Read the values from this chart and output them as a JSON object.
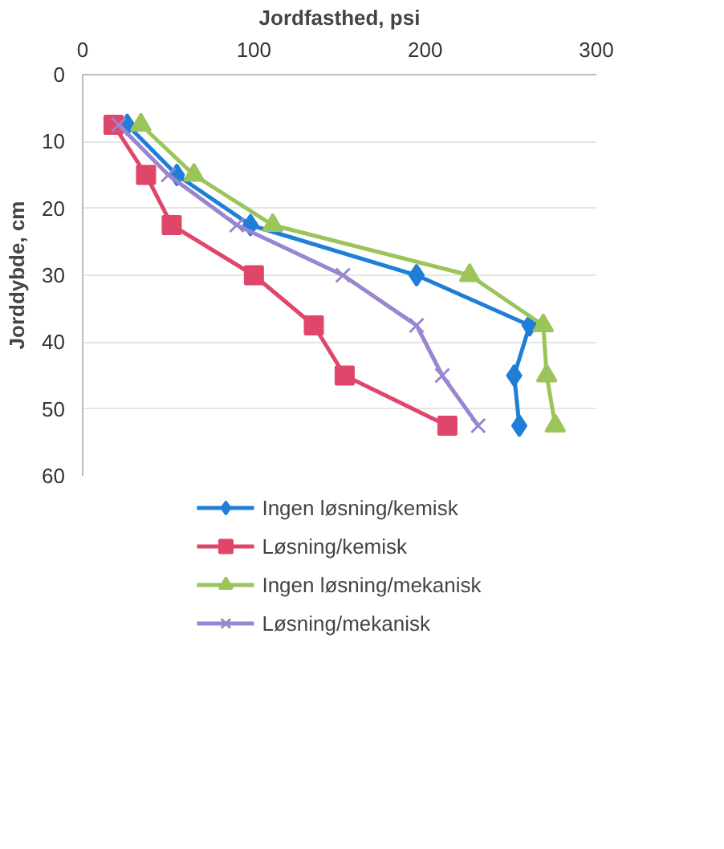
{
  "chart_data": {
    "type": "line",
    "xlabel": "Jordfasthed, psi",
    "ylabel": "Jorddybde, cm",
    "xlim": [
      0,
      300
    ],
    "xticks": [
      0,
      100,
      200,
      300
    ],
    "ylim": [
      60,
      0
    ],
    "yticks": [
      0,
      10,
      20,
      30,
      40,
      50,
      60
    ],
    "grid": "y",
    "legend": "bottom",
    "series": [
      {
        "name": "Ingen løsning/kemisk",
        "color": "#1f7fd6",
        "marker": "diamond",
        "x": [
          26,
          55,
          98,
          195,
          261,
          252,
          255
        ],
        "values": [
          7.5,
          15,
          22.5,
          30,
          37.5,
          45,
          52.5
        ]
      },
      {
        "name": "Løsning/kemisk",
        "color": "#e0456a",
        "marker": "square",
        "x": [
          18,
          37,
          52,
          100,
          135,
          153,
          213
        ],
        "values": [
          7.5,
          15,
          22.5,
          30,
          37.5,
          45,
          52.5
        ]
      },
      {
        "name": "Ingen løsning/mekanisk",
        "color": "#9bc45a",
        "marker": "triangle",
        "x": [
          34,
          65,
          111,
          226,
          269,
          271,
          276
        ],
        "values": [
          7.5,
          15,
          22.5,
          30,
          37.5,
          45,
          52.5
        ]
      },
      {
        "name": "Løsning/mekanisk",
        "color": "#9a85d0",
        "marker": "cross",
        "x": [
          21,
          50,
          90,
          152,
          195,
          210,
          231
        ],
        "values": [
          7.5,
          15,
          22.5,
          30,
          37.5,
          45,
          52.5
        ]
      }
    ]
  }
}
